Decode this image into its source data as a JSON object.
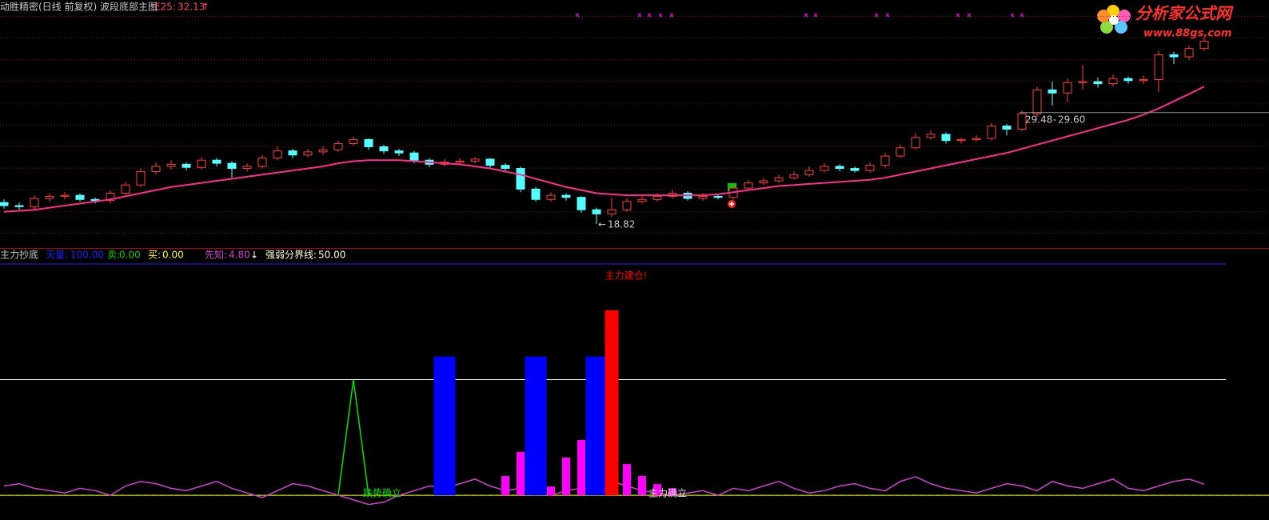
{
  "chart_data": [
    {
      "type": "candlestick",
      "title": "动胜精密(日线 前复权) 波段底部主图",
      "ylim": [
        16.5,
        40.5
      ],
      "up_color": "#ff3c3c",
      "down_color": "#54ffff",
      "open": [
        20.9,
        20.6,
        20.5,
        21.3,
        21.5,
        21.6,
        21.2,
        21.1,
        21.8,
        22.6,
        23.9,
        24.4,
        24.6,
        24.3,
        25.0,
        24.7,
        24.2,
        24.4,
        25.2,
        25.9,
        25.5,
        25.8,
        26.0,
        26.6,
        27.0,
        26.3,
        25.9,
        25.7,
        25.0,
        24.6,
        24.8,
        24.9,
        25.1,
        24.5,
        24.2,
        22.2,
        21.2,
        21.6,
        21.4,
        20.2,
        19.8,
        20.2,
        21.0,
        21.2,
        21.5,
        21.8,
        21.3,
        21.5,
        21.4,
        22.3,
        22.8,
        23.0,
        23.3,
        23.6,
        24.0,
        24.4,
        24.2,
        24.0,
        24.5,
        25.4,
        26.2,
        27.2,
        27.5,
        26.9,
        27.0,
        27.1,
        28.3,
        28.0,
        29.5,
        31.8,
        31.5,
        32.5,
        32.6,
        32.4,
        32.9,
        32.7,
        32.8,
        35.2,
        35.0,
        35.8
      ],
      "high": [
        21.2,
        20.9,
        21.6,
        21.8,
        21.9,
        21.8,
        21.4,
        22.1,
        22.9,
        24.2,
        24.8,
        25.0,
        24.8,
        25.3,
        25.2,
        24.9,
        24.7,
        25.5,
        26.3,
        26.1,
        26.1,
        26.3,
        26.9,
        27.3,
        27.1,
        26.5,
        26.1,
        25.9,
        25.2,
        25.1,
        25.2,
        25.3,
        25.2,
        24.7,
        24.4,
        22.4,
        21.9,
        21.8,
        21.5,
        20.4,
        21.4,
        21.3,
        21.5,
        21.8,
        22.1,
        22.0,
        21.8,
        21.7,
        22.6,
        23.1,
        23.3,
        23.6,
        23.9,
        24.4,
        24.7,
        24.6,
        24.4,
        24.8,
        25.7,
        26.5,
        27.6,
        27.9,
        27.7,
        27.2,
        27.4,
        28.6,
        28.5,
        29.8,
        32.1,
        32.6,
        32.9,
        34.2,
        33.0,
        33.3,
        33.1,
        33.2,
        35.6,
        35.5,
        36.1,
        37.0
      ],
      "low": [
        20.3,
        20.2,
        20.2,
        21.0,
        21.2,
        21.0,
        20.8,
        20.8,
        21.6,
        22.4,
        23.6,
        24.1,
        24.0,
        24.1,
        24.4,
        23.3,
        23.9,
        24.2,
        25.0,
        25.2,
        25.3,
        25.5,
        25.8,
        26.4,
        26.0,
        25.6,
        25.4,
        24.7,
        24.3,
        24.4,
        24.6,
        24.7,
        24.2,
        23.9,
        21.9,
        21.0,
        21.0,
        21.1,
        19.9,
        18.82,
        19.5,
        20.0,
        20.8,
        21.0,
        21.3,
        21.1,
        21.1,
        21.2,
        21.2,
        22.1,
        22.6,
        22.8,
        23.1,
        23.4,
        23.8,
        23.9,
        23.8,
        23.8,
        24.3,
        25.2,
        26.0,
        27.0,
        26.6,
        26.6,
        26.8,
        26.9,
        27.4,
        27.8,
        29.2,
        30.3,
        30.6,
        31.8,
        32.0,
        32.1,
        32.4,
        32.4,
        31.6,
        34.3,
        34.7,
        35.6
      ],
      "close": [
        20.6,
        20.5,
        21.3,
        21.5,
        21.6,
        21.2,
        21.1,
        21.8,
        22.6,
        23.9,
        24.4,
        24.6,
        24.3,
        25.0,
        24.7,
        24.2,
        24.4,
        25.2,
        25.9,
        25.5,
        25.8,
        26.0,
        26.6,
        27.0,
        26.3,
        25.9,
        25.7,
        25.0,
        24.6,
        24.8,
        24.9,
        25.1,
        24.5,
        24.2,
        22.2,
        21.2,
        21.6,
        21.4,
        20.2,
        19.8,
        20.2,
        21.0,
        21.2,
        21.5,
        21.8,
        21.3,
        21.5,
        21.4,
        22.3,
        22.8,
        23.0,
        23.3,
        23.6,
        24.0,
        24.4,
        24.2,
        24.0,
        24.5,
        25.4,
        26.2,
        27.2,
        27.5,
        26.9,
        27.0,
        27.1,
        28.3,
        28.0,
        29.5,
        31.8,
        31.5,
        32.5,
        32.6,
        32.4,
        32.9,
        32.7,
        32.8,
        35.2,
        35.0,
        35.8,
        36.5
      ],
      "ma": {
        "name": "E25:",
        "color": "#ff2d8a",
        "last_label": "32.13",
        "trend": "↑",
        "values": [
          20.0,
          20.1,
          20.2,
          20.4,
          20.6,
          20.8,
          21.0,
          21.2,
          21.5,
          21.8,
          22.1,
          22.4,
          22.6,
          22.8,
          23.0,
          23.2,
          23.4,
          23.6,
          23.8,
          24.0,
          24.2,
          24.4,
          24.7,
          24.9,
          25.0,
          25.0,
          25.0,
          24.9,
          24.8,
          24.7,
          24.6,
          24.4,
          24.2,
          23.9,
          23.6,
          23.2,
          22.8,
          22.4,
          22.1,
          21.8,
          21.7,
          21.6,
          21.6,
          21.6,
          21.6,
          21.6,
          21.6,
          21.7,
          21.9,
          22.1,
          22.3,
          22.5,
          22.6,
          22.7,
          22.8,
          22.9,
          23.0,
          23.1,
          23.3,
          23.6,
          23.9,
          24.2,
          24.5,
          24.8,
          25.1,
          25.4,
          25.7,
          26.1,
          26.5,
          26.9,
          27.3,
          27.7,
          28.1,
          28.5,
          28.9,
          29.4,
          30.0,
          30.7,
          31.4,
          32.13
        ]
      },
      "low_marker": "←",
      "range": {
        "low": 29.48,
        "separator": " - ",
        "high": {
          "value": 29.6,
          "label": "29.60"
        }
      }
    },
    {
      "type": "indicator",
      "title": "主力抄底",
      "ylim": [
        -10,
        100
      ],
      "levels": [
        {
          "name": "天量:",
          "value": 100,
          "label": "100.00",
          "color": "#1e1eff"
        },
        {
          "name": "卖:",
          "value": 0,
          "label": "0.00",
          "color": "#00c800"
        },
        {
          "name": "买:",
          "value": 0,
          "label": "0.00",
          "color": "#ffff00"
        },
        {
          "name": "强弱分界线:",
          "value": 50,
          "label": "50.00",
          "color": "#ffffcc"
        }
      ],
      "series": [
        {
          "name": "先知:",
          "style": "line",
          "color": "#d040d0",
          "last_label": "4.80",
          "trend": "↓",
          "values": [
            4,
            5,
            3,
            2,
            1,
            3,
            2,
            0,
            4,
            6,
            5,
            3,
            2,
            4,
            6,
            3,
            1,
            -1,
            2,
            5,
            4,
            2,
            0,
            -2,
            -4,
            -3,
            0,
            2,
            4,
            3,
            5,
            7,
            4,
            2,
            3,
            1,
            0,
            2,
            3,
            2,
            6,
            4,
            2,
            1,
            0,
            1,
            2,
            0,
            3,
            2,
            4,
            6,
            3,
            1,
            2,
            4,
            5,
            3,
            2,
            6,
            8,
            5,
            3,
            2,
            1,
            3,
            5,
            4,
            2,
            6,
            4,
            3,
            5,
            7,
            3,
            2,
            4,
            6,
            7,
            4.8
          ]
        },
        {
          "name": "主力确立",
          "style": "bar",
          "color": "#ff00ff",
          "values": [
            0,
            0,
            0,
            0,
            0,
            0,
            0,
            0,
            0,
            0,
            0,
            0,
            0,
            0,
            0,
            0,
            0,
            0,
            0,
            0,
            0,
            0,
            0,
            0,
            0,
            0,
            0,
            0,
            0,
            0,
            0,
            0,
            0,
            8.3,
            18.7,
            27.3,
            3.8,
            16.3,
            23.9,
            0,
            27,
            13.5,
            8.3,
            4.8,
            3.1,
            0,
            0,
            0,
            0,
            0,
            0,
            0,
            0,
            0,
            0,
            0,
            0,
            0,
            0,
            0,
            0,
            0,
            0,
            0,
            0,
            0,
            0,
            0,
            0,
            0,
            0,
            0,
            0,
            0,
            0,
            0,
            0,
            0,
            0,
            0
          ]
        },
        {
          "style": "wide-bar",
          "color": "#0000ff",
          "values": [
            0,
            0,
            0,
            0,
            0,
            0,
            0,
            0,
            0,
            0,
            0,
            0,
            0,
            0,
            0,
            0,
            0,
            0,
            0,
            0,
            0,
            0,
            0,
            0,
            0,
            0,
            0,
            0,
            0,
            60,
            0,
            0,
            0,
            0,
            0,
            60,
            0,
            0,
            0,
            60,
            0,
            0,
            0,
            0,
            0,
            0,
            0,
            0,
            0,
            0,
            0,
            0,
            0,
            0,
            0,
            0,
            0,
            0,
            0,
            0,
            0,
            0,
            0,
            0,
            0,
            0,
            0,
            0,
            0,
            0,
            0,
            0,
            0,
            0,
            0,
            0,
            0,
            0,
            0,
            0
          ]
        },
        {
          "name": "主力建仓!",
          "style": "mid-bar",
          "color": "#ff0000",
          "values": [
            0,
            0,
            0,
            0,
            0,
            0,
            0,
            0,
            0,
            0,
            0,
            0,
            0,
            0,
            0,
            0,
            0,
            0,
            0,
            0,
            0,
            0,
            0,
            0,
            0,
            0,
            0,
            0,
            0,
            0,
            0,
            0,
            0,
            0,
            0,
            0,
            0,
            0,
            0,
            0,
            80,
            0,
            0,
            0,
            0,
            0,
            0,
            0,
            0,
            0,
            0,
            0,
            0,
            0,
            0,
            0,
            0,
            0,
            0,
            0,
            0,
            0,
            0,
            0,
            0,
            0,
            0,
            0,
            0,
            0,
            0,
            0,
            0,
            0,
            0,
            0,
            0,
            0,
            0,
            0
          ]
        },
        {
          "name": "跌势确立",
          "style": "line",
          "color": "#00e000",
          "values": [
            null,
            null,
            null,
            null,
            null,
            null,
            null,
            null,
            null,
            null,
            null,
            null,
            null,
            null,
            null,
            null,
            null,
            null,
            null,
            null,
            null,
            null,
            0,
            50,
            0,
            null,
            null,
            null,
            null,
            null,
            null,
            null,
            null,
            null,
            null,
            null,
            null,
            null,
            null,
            null,
            null,
            null,
            null,
            null,
            null,
            null,
            null,
            null,
            null,
            null,
            null,
            null,
            null,
            null,
            null,
            null,
            null,
            null,
            null,
            null,
            null,
            null,
            null,
            null,
            null,
            null,
            null,
            null,
            null,
            null,
            null,
            null,
            null,
            null,
            null,
            null,
            null,
            null,
            null,
            null
          ]
        }
      ]
    }
  ],
  "watermark": {
    "name": "分析家公式网",
    "url": "www.88gs.com"
  }
}
